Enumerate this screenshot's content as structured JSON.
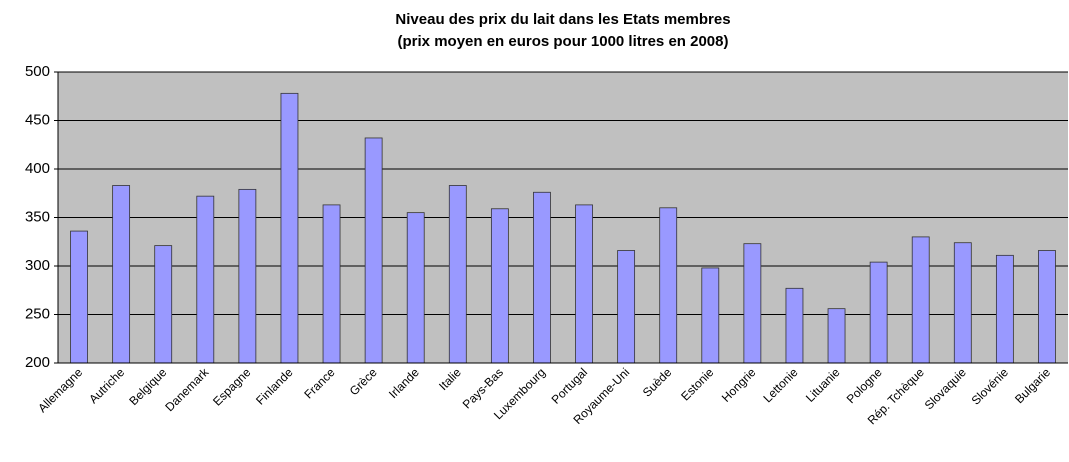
{
  "chart_data": {
    "type": "bar",
    "title": "Niveau des prix du lait dans les Etats membres",
    "subtitle": "(prix moyen en euros pour 1000 litres en 2008)",
    "categories": [
      "Allemagne",
      "Autriche",
      "Belgique",
      "Danemark",
      "Espagne",
      "Finlande",
      "France",
      "Grèce",
      "Irlande",
      "Italie",
      "Pays-Bas",
      "Luxembourg",
      "Portugal",
      "Royaume-Uni",
      "Suède",
      "Estonie",
      "Hongrie",
      "Lettonie",
      "Lituanie",
      "Pologne",
      "Rép. Tchèque",
      "Slovaquie",
      "Slovénie",
      "Bulgarie"
    ],
    "values": [
      336,
      383,
      321,
      372,
      379,
      478,
      363,
      432,
      355,
      383,
      359,
      376,
      363,
      316,
      360,
      298,
      323,
      277,
      256,
      304,
      330,
      324,
      311,
      316
    ],
    "color": "#9999ff",
    "ylim": [
      200,
      500
    ],
    "yticks": [
      200,
      250,
      300,
      350,
      400,
      450,
      500
    ],
    "grid": true
  }
}
